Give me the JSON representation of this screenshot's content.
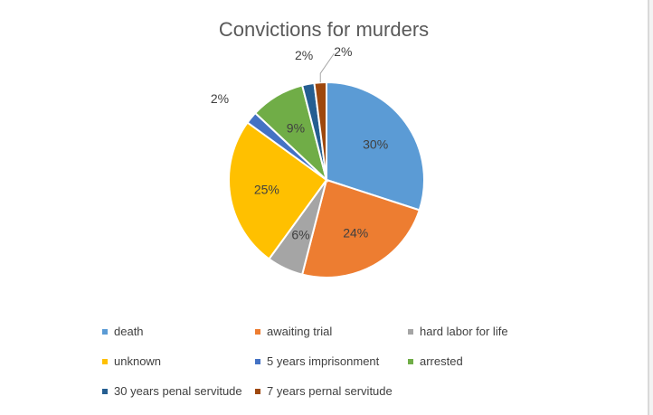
{
  "chart_data": {
    "type": "pie",
    "title": "Convictions for murders",
    "legend_position": "bottom",
    "slices": [
      {
        "name": "death",
        "value": 30,
        "label": "30%",
        "color": "#5b9bd5"
      },
      {
        "name": "awaiting trial",
        "value": 24,
        "label": "24%",
        "color": "#ed7d31"
      },
      {
        "name": "hard labor for life",
        "value": 6,
        "label": "6%",
        "color": "#a5a5a5"
      },
      {
        "name": "unknown",
        "value": 25,
        "label": "25%",
        "color": "#ffc000"
      },
      {
        "name": "5 years imprisonment",
        "value": 2,
        "label": "2%",
        "color": "#4472c4"
      },
      {
        "name": "arrested",
        "value": 9,
        "label": "9%",
        "color": "#70ad47"
      },
      {
        "name": "30 years penal servitude",
        "value": 2,
        "label": "2%",
        "color": "#255e91"
      },
      {
        "name": "7 years pernal servitude",
        "value": 2,
        "label": "2%",
        "color": "#9e480e"
      }
    ]
  }
}
